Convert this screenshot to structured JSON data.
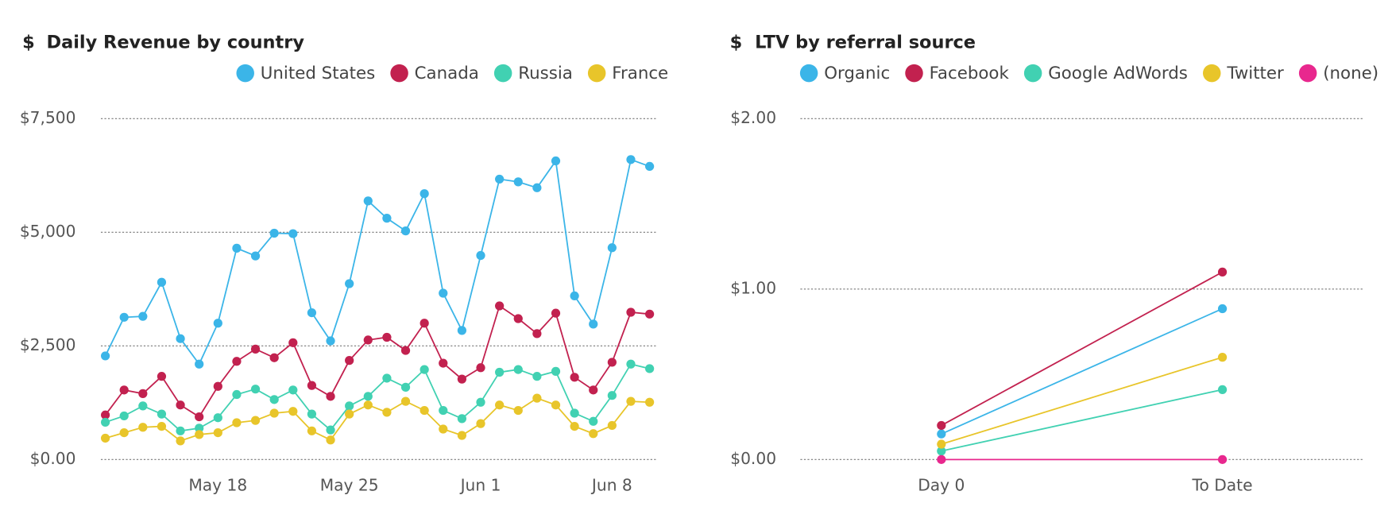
{
  "chart_data": [
    {
      "type": "line",
      "icon": "$",
      "title": "Daily Revenue by country",
      "x": [
        "May 12",
        "May 13",
        "May 14",
        "May 15",
        "May 16",
        "May 17",
        "May 18",
        "May 19",
        "May 20",
        "May 21",
        "May 22",
        "May 23",
        "May 24",
        "May 25",
        "May 26",
        "May 27",
        "May 28",
        "May 29",
        "May 30",
        "May 31",
        "Jun 1",
        "Jun 2",
        "Jun 3",
        "Jun 4",
        "Jun 5",
        "Jun 6",
        "Jun 7",
        "Jun 8",
        "Jun 9",
        "Jun 10"
      ],
      "xticks": [
        "May 18",
        "May 25",
        "Jun 1",
        "Jun 8"
      ],
      "ylim": [
        0,
        7500
      ],
      "yticks": [
        {
          "value": 0,
          "label": "$0.00"
        },
        {
          "value": 2500,
          "label": "$2,500"
        },
        {
          "value": 5000,
          "label": "$5,000"
        },
        {
          "value": 7500,
          "label": "$7,500"
        }
      ],
      "grid": true,
      "legend": "top-right",
      "series": [
        {
          "name": "United States",
          "color": "#3bb5e8",
          "values": [
            2280,
            3130,
            3150,
            3900,
            2660,
            2100,
            3000,
            4650,
            4480,
            4980,
            4970,
            3230,
            2610,
            3870,
            5690,
            5310,
            5030,
            5850,
            3660,
            2840,
            4490,
            6170,
            6110,
            5980,
            6570,
            3600,
            2980,
            4660,
            6600,
            6450
          ]
        },
        {
          "name": "Canada",
          "color": "#c2214f",
          "values": [
            980,
            1530,
            1450,
            1830,
            1200,
            940,
            1610,
            2160,
            2430,
            2240,
            2570,
            1630,
            1390,
            2180,
            2630,
            2690,
            2400,
            3000,
            2120,
            1770,
            2020,
            3380,
            3100,
            2770,
            3220,
            1810,
            1530,
            2140,
            3240,
            3200
          ]
        },
        {
          "name": "Russia",
          "color": "#41d1b2",
          "values": [
            820,
            960,
            1180,
            1000,
            630,
            690,
            920,
            1430,
            1550,
            1320,
            1530,
            1000,
            650,
            1180,
            1390,
            1790,
            1590,
            1980,
            1080,
            900,
            1260,
            1920,
            1980,
            1830,
            1940,
            1020,
            840,
            1410,
            2100,
            2000
          ]
        },
        {
          "name": "France",
          "color": "#e8c52a",
          "values": [
            470,
            590,
            710,
            730,
            410,
            550,
            590,
            810,
            860,
            1020,
            1060,
            630,
            430,
            1000,
            1200,
            1040,
            1280,
            1080,
            670,
            530,
            790,
            1200,
            1080,
            1350,
            1200,
            730,
            570,
            750,
            1280,
            1260
          ]
        }
      ]
    },
    {
      "type": "line",
      "icon": "$",
      "title": "LTV by referral source",
      "x": [
        "Day 0",
        "To Date"
      ],
      "xticks": [
        "Day 0",
        "To Date"
      ],
      "ylim": [
        0,
        2
      ],
      "yticks": [
        {
          "value": 0,
          "label": "$0.00"
        },
        {
          "value": 1,
          "label": "$1.00"
        },
        {
          "value": 2,
          "label": "$2.00"
        }
      ],
      "grid": true,
      "legend": "top-right",
      "series": [
        {
          "name": "Organic",
          "color": "#3bb5e8",
          "values": [
            0.15,
            0.885
          ]
        },
        {
          "name": "Facebook",
          "color": "#c2214f",
          "values": [
            0.2,
            1.1
          ]
        },
        {
          "name": "Google AdWords",
          "color": "#41d1b2",
          "values": [
            0.05,
            0.41
          ]
        },
        {
          "name": "Twitter",
          "color": "#e8c52a",
          "values": [
            0.09,
            0.6
          ]
        },
        {
          "name": "(none)",
          "color": "#e8288e",
          "values": [
            0,
            0
          ]
        }
      ]
    }
  ]
}
